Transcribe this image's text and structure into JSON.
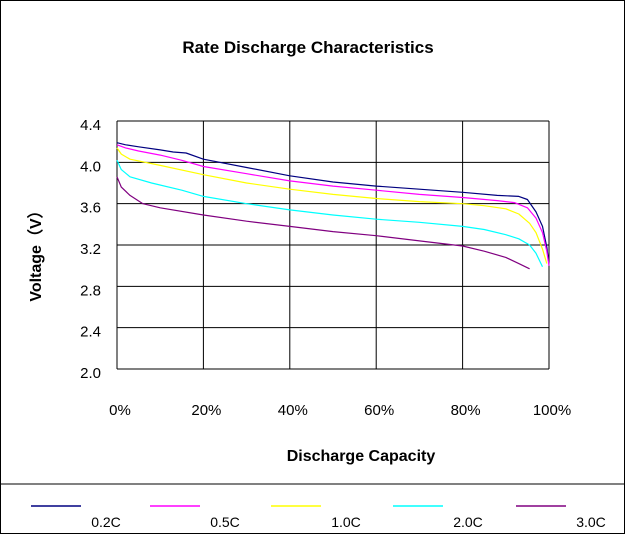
{
  "chart_data": {
    "type": "line",
    "title": "Rate Discharge Characteristics",
    "xlabel": "Discharge Capacity",
    "ylabel": "Voltage（V）",
    "x_unit": "%",
    "xlim": [
      0,
      100
    ],
    "ylim": [
      2.0,
      4.4
    ],
    "x_ticks": [
      0,
      20,
      40,
      60,
      80,
      100
    ],
    "x_tick_labels": [
      "0%",
      "20%",
      "40%",
      "60%",
      "80%",
      "100%"
    ],
    "y_ticks": [
      2.0,
      2.4,
      2.8,
      3.2,
      3.6,
      4.0,
      4.4
    ],
    "y_tick_labels": [
      "2.0",
      "2.4",
      "2.8",
      "3.2",
      "3.6",
      "4.0",
      "4.4"
    ],
    "grid": true,
    "legend_position": "bottom",
    "series": [
      {
        "name": "0.2C",
        "color": "#000080",
        "x": [
          0,
          2,
          5,
          10,
          13,
          16,
          20,
          30,
          40,
          50,
          60,
          70,
          80,
          88,
          93,
          95,
          97,
          98.5,
          99.5,
          100
        ],
        "y": [
          4.19,
          4.17,
          4.15,
          4.12,
          4.1,
          4.09,
          4.03,
          3.95,
          3.87,
          3.81,
          3.77,
          3.74,
          3.71,
          3.68,
          3.67,
          3.64,
          3.52,
          3.38,
          3.18,
          3.01
        ]
      },
      {
        "name": "0.5C",
        "color": "#ff00ff",
        "x": [
          0,
          2,
          5,
          10,
          15,
          20,
          30,
          40,
          50,
          60,
          70,
          80,
          88,
          92,
          95,
          97,
          98.5,
          99.5,
          100
        ],
        "y": [
          4.17,
          4.14,
          4.11,
          4.07,
          4.02,
          3.96,
          3.89,
          3.82,
          3.77,
          3.73,
          3.69,
          3.66,
          3.63,
          3.61,
          3.56,
          3.46,
          3.32,
          3.14,
          3.0
        ]
      },
      {
        "name": "1.0C",
        "color": "#ffff00",
        "x": [
          0,
          1,
          3,
          10,
          20,
          30,
          40,
          50,
          60,
          70,
          80,
          85,
          90,
          93,
          95.5,
          97,
          98.5,
          99.5
        ],
        "y": [
          4.14,
          4.08,
          4.03,
          3.97,
          3.88,
          3.8,
          3.74,
          3.69,
          3.65,
          3.62,
          3.6,
          3.58,
          3.55,
          3.5,
          3.41,
          3.32,
          3.16,
          3.02
        ]
      },
      {
        "name": "2.0C",
        "color": "#00ffff",
        "x": [
          0,
          1,
          3,
          8,
          15,
          20,
          30,
          40,
          50,
          60,
          70,
          80,
          85,
          90,
          93,
          95.5,
          97,
          98.5
        ],
        "y": [
          4.02,
          3.93,
          3.86,
          3.8,
          3.73,
          3.67,
          3.6,
          3.54,
          3.49,
          3.45,
          3.42,
          3.38,
          3.35,
          3.3,
          3.26,
          3.2,
          3.12,
          2.99
        ]
      },
      {
        "name": "3.0C",
        "color": "#800080",
        "x": [
          0,
          1,
          3,
          6,
          10,
          20,
          30,
          40,
          50,
          60,
          70,
          80,
          85,
          90,
          93,
          95.5
        ],
        "y": [
          3.86,
          3.76,
          3.68,
          3.6,
          3.56,
          3.49,
          3.43,
          3.38,
          3.33,
          3.29,
          3.24,
          3.19,
          3.14,
          3.08,
          3.02,
          2.97
        ]
      }
    ]
  }
}
